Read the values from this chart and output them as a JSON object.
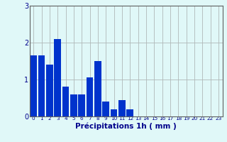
{
  "values": [
    1.65,
    1.65,
    1.4,
    2.1,
    0.8,
    0.6,
    0.6,
    1.05,
    1.5,
    0.4,
    0.2,
    0.45,
    0.2,
    0.0,
    0.0,
    0.0,
    0.0,
    0.0,
    0.0,
    0.0,
    0.0,
    0.0,
    0.0,
    0.0
  ],
  "bar_color": "#0033cc",
  "background_color": "#e0f8f8",
  "grid_color": "#b0b8b8",
  "xlabel": "Précipitations 1h ( mm )",
  "xlabel_color": "#00008b",
  "tick_color": "#00008b",
  "axis_color": "#606060",
  "ylim": [
    0,
    3
  ],
  "yticks": [
    0,
    1,
    2,
    3
  ],
  "n_bars": 24,
  "xtick_fontsize": 5.2,
  "ytick_fontsize": 7.0,
  "xlabel_fontsize": 7.5
}
